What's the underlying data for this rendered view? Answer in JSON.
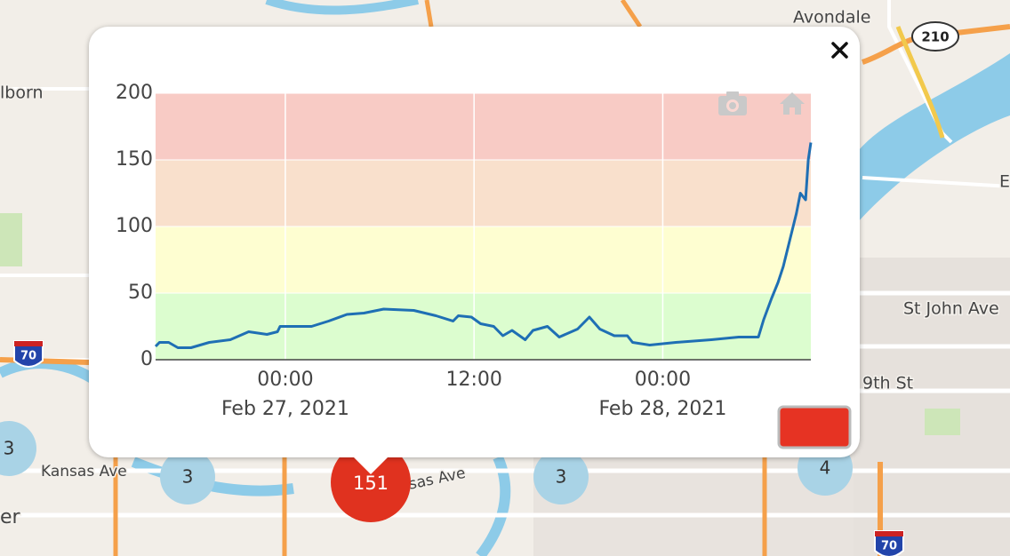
{
  "map": {
    "labels": {
      "avondale": "Avondale",
      "dearborn": "lborn",
      "st_john": "St John Ave",
      "ninth": "9th St",
      "kansas": "Kansas Ave",
      "kansas2": "sas Ave",
      "edge_e": "E",
      "edge_er": "er"
    },
    "shields": [
      "210",
      "70",
      "70"
    ],
    "clusters": [
      "3",
      "3",
      "151",
      "3",
      "4"
    ]
  },
  "popup": {
    "chart_data": {
      "type": "line",
      "x": [
        "2021-02-26 15:45",
        "2021-02-26 16:00",
        "2021-02-26 16:35",
        "2021-02-26 17:10",
        "2021-02-26 18:00",
        "2021-02-26 19:10",
        "2021-02-26 20:30",
        "2021-02-26 21:40",
        "2021-02-26 22:50",
        "2021-02-26 23:30",
        "2021-02-26 23:40",
        "2021-02-27 01:40",
        "2021-02-27 02:45",
        "2021-02-27 03:55",
        "2021-02-27 05:00",
        "2021-02-27 06:15",
        "2021-02-27 08:10",
        "2021-02-27 09:35",
        "2021-02-27 10:40",
        "2021-02-27 11:00",
        "2021-02-27 11:50",
        "2021-02-27 12:25",
        "2021-02-27 13:15",
        "2021-02-27 13:50",
        "2021-02-27 14:25",
        "2021-02-27 15:15",
        "2021-02-27 15:45",
        "2021-02-27 16:40",
        "2021-02-27 17:25",
        "2021-02-27 18:35",
        "2021-02-27 19:20",
        "2021-02-27 20:00",
        "2021-02-27 20:55",
        "2021-02-27 21:45",
        "2021-02-27 22:05",
        "2021-02-27 23:10",
        "2021-02-28 00:50",
        "2021-02-28 03:05",
        "2021-02-28 04:50",
        "2021-02-28 06:05",
        "2021-02-28 06:25",
        "2021-02-28 06:55",
        "2021-02-28 07:20",
        "2021-02-28 07:40",
        "2021-02-28 08:05",
        "2021-02-28 08:30",
        "2021-02-28 08:45",
        "2021-02-28 09:05",
        "2021-02-28 09:15",
        "2021-02-28 09:25"
      ],
      "values": [
        10,
        13,
        13,
        9,
        9,
        13,
        15,
        21,
        19,
        21,
        25,
        25,
        29,
        34,
        35,
        38,
        37,
        33,
        29,
        33,
        32,
        27,
        25,
        18,
        22,
        15,
        22,
        25,
        17,
        23,
        32,
        23,
        18,
        18,
        13,
        11,
        13,
        15,
        17,
        17,
        30,
        46,
        58,
        70,
        90,
        110,
        125,
        120,
        150,
        163
      ],
      "color": "#1f6fb4",
      "xlim": [
        "2021-02-26 15:45",
        "2021-02-28 09:25"
      ],
      "xticks": [
        {
          "value": "2021-02-27 00:00",
          "label": "00:00\nFeb 27, 2021"
        },
        {
          "value": "2021-02-27 12:00",
          "label": "12:00"
        },
        {
          "value": "2021-02-28 00:00",
          "label": "00:00\nFeb 28, 2021"
        }
      ],
      "ylim": [
        0,
        200
      ],
      "yticks": [
        0,
        50,
        100,
        150,
        200
      ],
      "grid": true,
      "bands": [
        {
          "from": 0,
          "to": 50,
          "color": "#dcfdcf"
        },
        {
          "from": 50,
          "to": 100,
          "color": "#fefed1"
        },
        {
          "from": 100,
          "to": 150,
          "color": "#f9e0cc"
        },
        {
          "from": 150,
          "to": 200,
          "color": "#f8cbc5"
        }
      ]
    }
  }
}
